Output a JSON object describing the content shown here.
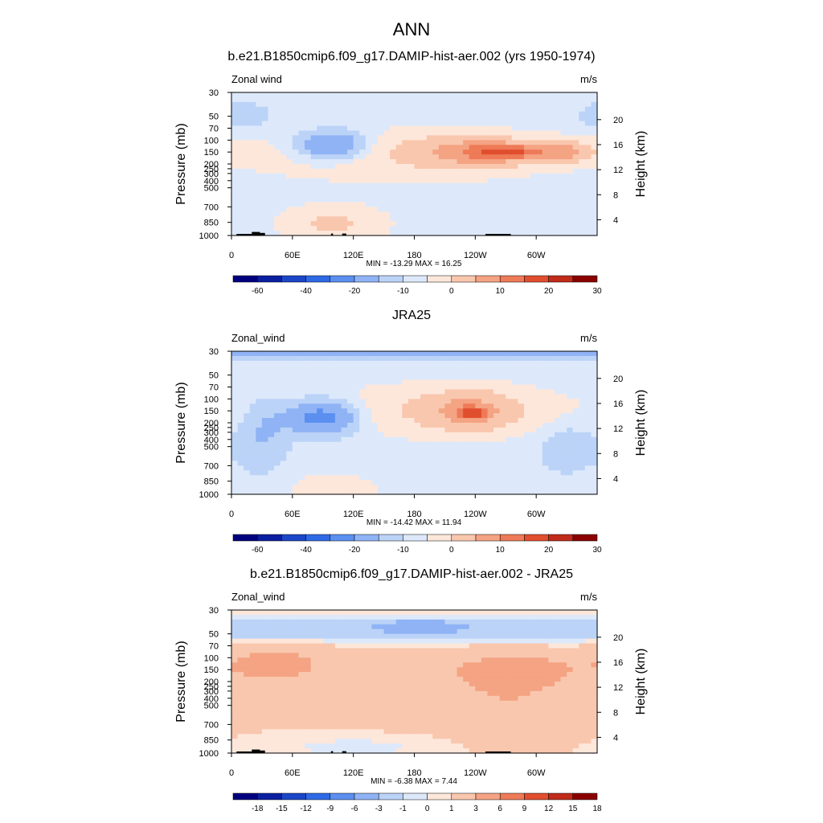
{
  "figure": {
    "title": "ANN"
  },
  "colors": {
    "abs_scale": [
      "#00007f",
      "#0a1fa0",
      "#1b46c8",
      "#2e6ae6",
      "#5b8ff0",
      "#8fb3f5",
      "#bcd3f8",
      "#dde9fb",
      "#fde7da",
      "#f9c7ae",
      "#f4a383",
      "#ee7a57",
      "#e14e2e",
      "#c02b1a",
      "#8b0000"
    ],
    "diff_scale": [
      "#00007f",
      "#0a1fa0",
      "#1b46c8",
      "#2e6ae6",
      "#5b8ff0",
      "#8fb3f5",
      "#bcd3f8",
      "#dde9fb",
      "#fde7da",
      "#f9c7ae",
      "#f4a383",
      "#ee7a57",
      "#e14e2e",
      "#c02b1a",
      "#8b0000"
    ]
  },
  "chart_data": [
    {
      "type": "heatmap",
      "title": "b.e21.B1850cmip6.f09_g17.DAMIP-hist-aer.002 (yrs 1950-1974)",
      "left_label": "Zonal wind",
      "units": "m/s",
      "ylabel": "Pressure (mb)",
      "ylabel_right": "Height (km)",
      "xticks": [
        "0",
        "60E",
        "120E",
        "180",
        "120W",
        "60W"
      ],
      "yticks": [
        "30",
        "50",
        "70",
        "100",
        "150",
        "200",
        "250",
        "300",
        "400",
        "500",
        "700",
        "850",
        "1000"
      ],
      "yticks_right": [
        "20",
        "16",
        "12",
        "8",
        "4"
      ],
      "stats": "MIN = -13.29  MAX =  16.25",
      "levels": [
        "-60",
        "-40",
        "-20",
        "-10",
        "0",
        "10",
        "20",
        "30"
      ],
      "terrain": true,
      "blobs": [
        {
          "lon": 160,
          "p": 5.2,
          "dlon": 150,
          "dp": 2.2,
          "val": 4
        },
        {
          "lon": 240,
          "p": 5.0,
          "dlon": 55,
          "dp": 1.2,
          "val": 10
        },
        {
          "lon": 325,
          "p": 5.0,
          "dlon": 28,
          "dp": 0.9,
          "val": 11
        },
        {
          "lon": 270,
          "p": 5.0,
          "dlon": 30,
          "dp": 0.6,
          "val": 14
        },
        {
          "lon": 100,
          "p": 4.5,
          "dlon": 38,
          "dp": 1.3,
          "val": -9
        },
        {
          "lon": 100,
          "p": 11.0,
          "dlon": 50,
          "dp": 1.5,
          "val": 5
        },
        {
          "lon": 10,
          "p": 2.0,
          "dlon": 25,
          "dp": 1.0,
          "val": -3
        }
      ]
    },
    {
      "type": "heatmap",
      "title": "JRA25",
      "left_label": "Zonal_wind",
      "units": "m/s",
      "ylabel": "Pressure (mb)",
      "ylabel_right": "Height (km)",
      "xticks": [
        "0",
        "60E",
        "120E",
        "180",
        "120W",
        "60W"
      ],
      "yticks": [
        "30",
        "50",
        "70",
        "100",
        "150",
        "200",
        "250",
        "300",
        "400",
        "500",
        "700",
        "850",
        "1000"
      ],
      "yticks_right": [
        "20",
        "16",
        "12",
        "8",
        "4"
      ],
      "stats": "MIN = -14.42  MAX =  11.94",
      "levels": [
        "-60",
        "-40",
        "-20",
        "-10",
        "0",
        "10",
        "20",
        "30"
      ],
      "terrain": false,
      "blobs": [
        {
          "lon": 0,
          "p": 0.0,
          "dlon": 400,
          "dp": 0.6,
          "val": -4
        },
        {
          "lon": 200,
          "p": 5.0,
          "dlon": 140,
          "dp": 2.2,
          "val": 4
        },
        {
          "lon": 235,
          "p": 5.0,
          "dlon": 40,
          "dp": 1.5,
          "val": 9
        },
        {
          "lon": 236,
          "p": 5.2,
          "dlon": 14,
          "dp": 0.5,
          "val": 13
        },
        {
          "lon": 90,
          "p": 5.5,
          "dlon": 40,
          "dp": 1.5,
          "val": -9
        },
        {
          "lon": 30,
          "p": 7.0,
          "dlon": 25,
          "dp": 3.0,
          "val": -3
        },
        {
          "lon": 330,
          "p": 8.0,
          "dlon": 25,
          "dp": 2.0,
          "val": -3
        },
        {
          "lon": 100,
          "p": 11.5,
          "dlon": 45,
          "dp": 1.2,
          "val": 3
        }
      ]
    },
    {
      "type": "heatmap",
      "title": "b.e21.B1850cmip6.f09_g17.DAMIP-hist-aer.002 - JRA25",
      "left_label": "Zonal_wind",
      "units": "m/s",
      "ylabel": "Pressure (mb)",
      "ylabel_right": "Height (km)",
      "xticks": [
        "0",
        "60E",
        "120E",
        "180",
        "120W",
        "60W"
      ],
      "yticks": [
        "30",
        "50",
        "70",
        "100",
        "150",
        "200",
        "250",
        "300",
        "400",
        "500",
        "700",
        "850",
        "1000"
      ],
      "yticks_right": [
        "20",
        "16",
        "12",
        "8",
        "4"
      ],
      "stats": "MIN = -6.38  MAX =  7.44",
      "levels": [
        "-18",
        "-15",
        "-12",
        "-9",
        "-6",
        "-3",
        "-1",
        "0",
        "1",
        "3",
        "6",
        "9",
        "12",
        "15",
        "18"
      ],
      "terrain": true,
      "blobs": [
        {
          "lon": 180,
          "p": 1.6,
          "dlon": 420,
          "dp": 1.0,
          "val": -4
        },
        {
          "lon": 185,
          "p": 1.3,
          "dlon": 30,
          "dp": 0.5,
          "val": -3
        },
        {
          "lon": 40,
          "p": 4.5,
          "dlon": 50,
          "dp": 1.5,
          "val": 2.5
        },
        {
          "lon": 280,
          "p": 5.0,
          "dlon": 60,
          "dp": 1.5,
          "val": 2.5
        },
        {
          "lon": 160,
          "p": 6.0,
          "dlon": 200,
          "dp": 3.5,
          "val": 1.2
        },
        {
          "lon": 280,
          "p": 8.5,
          "dlon": 60,
          "dp": 3.0,
          "val": 1.5
        },
        {
          "lon": 120,
          "p": 11.5,
          "dlon": 70,
          "dp": 0.8,
          "val": -1.5
        }
      ]
    }
  ]
}
